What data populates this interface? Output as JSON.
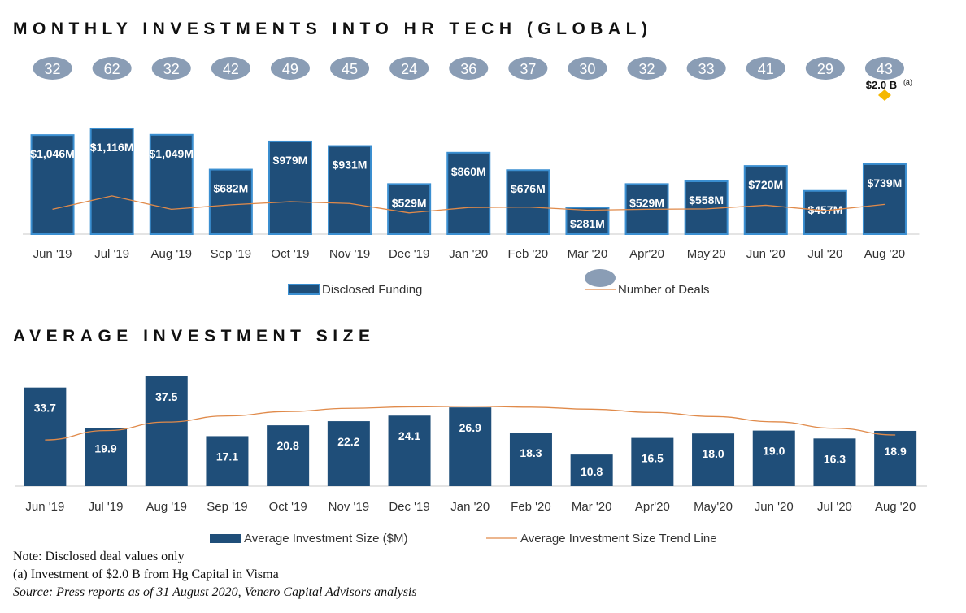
{
  "titles": {
    "monthly": "MONTHLY INVESTMENTS INTO HR TECH (GLOBAL)",
    "average": "AVERAGE INVESTMENT SIZE"
  },
  "colors": {
    "bar": "#1f4e79",
    "bar_border": "#3b8fd1",
    "trend": "#e08a4a",
    "deal_bubble": "#8a9db5",
    "highlight": "#f5b800"
  },
  "chart_data": [
    {
      "type": "bar",
      "title": "MONTHLY INVESTMENTS INTO HR TECH (GLOBAL)",
      "categories": [
        "Jun '19",
        "Jul '19",
        "Aug '19",
        "Sep '19",
        "Oct '19",
        "Nov '19",
        "Dec '19",
        "Jan '20",
        "Feb '20",
        "Mar '20",
        "Apr'20",
        "May'20",
        "Jun '20",
        "Jul '20",
        "Aug '20"
      ],
      "series": [
        {
          "name": "Disclosed Funding",
          "type": "bar",
          "values": [
            1046,
            1116,
            1049,
            682,
            979,
            931,
            529,
            860,
            676,
            281,
            529,
            558,
            720,
            457,
            739
          ],
          "labels": [
            "$1,046M",
            "$1,116M",
            "$1,049M",
            "$682M",
            "$979M",
            "$931M",
            "$529M",
            "$860M",
            "$676M",
            "$281M",
            "$529M",
            "$558M",
            "$720M",
            "$457M",
            "$739M"
          ]
        },
        {
          "name": "Number of Deals",
          "type": "line",
          "values": [
            32,
            62,
            32,
            42,
            49,
            45,
            24,
            36,
            37,
            30,
            32,
            33,
            41,
            29,
            43
          ],
          "labels": [
            "32",
            "62",
            "32",
            "42",
            "49",
            "45",
            "24",
            "36",
            "37",
            "30",
            "32",
            "33",
            "41",
            "29",
            "43"
          ]
        }
      ],
      "annotation": {
        "text": "$2.0 B",
        "superscript": "(a)",
        "category": "Aug '20"
      },
      "legend": "bottom",
      "ylim": [
        0,
        1200
      ]
    },
    {
      "type": "bar",
      "title": "AVERAGE INVESTMENT SIZE",
      "categories": [
        "Jun '19",
        "Jul '19",
        "Aug '19",
        "Sep '19",
        "Oct '19",
        "Nov '19",
        "Dec '19",
        "Jan '20",
        "Feb '20",
        "Mar '20",
        "Apr'20",
        "May'20",
        "Jun '20",
        "Jul '20",
        "Aug '20"
      ],
      "series": [
        {
          "name": "Average Investment Size ($M)",
          "type": "bar",
          "values": [
            33.7,
            19.9,
            37.5,
            17.1,
            20.8,
            22.2,
            24.1,
            26.9,
            18.3,
            10.8,
            16.5,
            18.0,
            19.0,
            16.3,
            18.9
          ],
          "labels": [
            "33.7",
            "19.9",
            "37.5",
            "17.1",
            "20.8",
            "22.2",
            "24.1",
            "26.9",
            "18.3",
            "10.8",
            "16.5",
            "18.0",
            "19.0",
            "16.3",
            "18.9"
          ]
        },
        {
          "name": "Average Investment Size Trend Line",
          "type": "line",
          "values": [
            15.8,
            19.0,
            21.9,
            24.0,
            25.5,
            26.6,
            27.1,
            27.3,
            27.0,
            26.3,
            25.2,
            23.8,
            22.0,
            19.8,
            17.5
          ]
        }
      ],
      "legend": "bottom",
      "ylim": [
        0,
        40
      ]
    }
  ],
  "notes": {
    "note": "Note: Disclosed deal values only",
    "footnote": "(a) Investment of $2.0 B from Hg Capital in Visma",
    "source": "Source: Press reports as of 31 August 2020, Venero Capital Advisors analysis"
  }
}
